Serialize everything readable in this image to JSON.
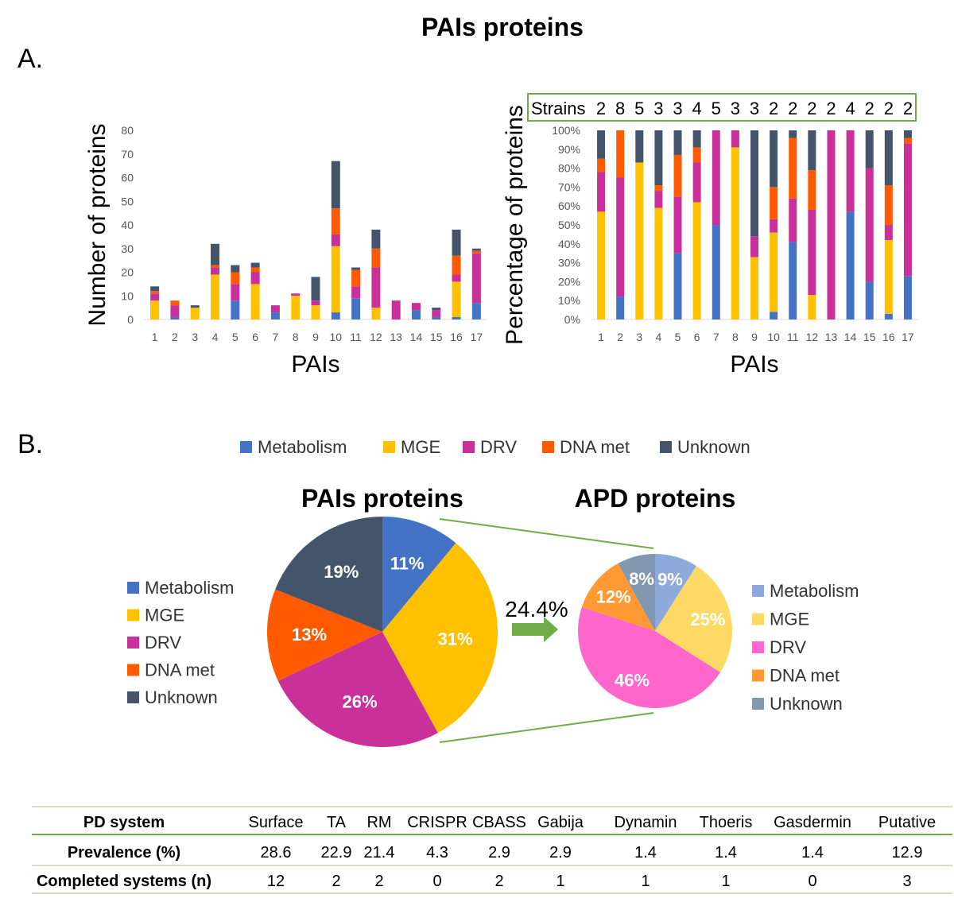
{
  "figure": {
    "title": "PAIs proteins",
    "panel_a_label": "A.",
    "panel_b_label": "B."
  },
  "colors": {
    "Metabolism": "#4472C4",
    "MGE": "#FFC000",
    "DRV": "#C9309A",
    "DNA met": "#FF5A00",
    "Unknown": "#44546A",
    "Metabolism_light": "#8EA9DB",
    "MGE_light": "#FFD966",
    "DRV_light": "#FF66CC",
    "DNA met_light": "#FF9933",
    "Unknown_light": "#8497B0",
    "green": "#70AD47"
  },
  "chart_data": [
    {
      "id": "counts",
      "type": "bar",
      "stacked": true,
      "categories": [
        "1",
        "2",
        "3",
        "4",
        "5",
        "6",
        "7",
        "8",
        "9",
        "10",
        "11",
        "12",
        "13",
        "14",
        "15",
        "16",
        "17"
      ],
      "series": [
        {
          "name": "Metabolism",
          "values": [
            0,
            1,
            0,
            0,
            8,
            0,
            3,
            0,
            0,
            3,
            9,
            0,
            0,
            4,
            1,
            1,
            7
          ]
        },
        {
          "name": "MGE",
          "values": [
            8,
            0,
            5,
            19,
            0,
            15,
            0,
            10,
            6,
            28,
            0,
            5,
            0,
            0,
            0,
            15,
            0
          ]
        },
        {
          "name": "DRV",
          "values": [
            3,
            5,
            0,
            3,
            7,
            5,
            3,
            1,
            2,
            5,
            5,
            17,
            8,
            3,
            3,
            3,
            21
          ]
        },
        {
          "name": "DNA met",
          "values": [
            1,
            2,
            0,
            1,
            5,
            2,
            0,
            0,
            0,
            11,
            7,
            8,
            0,
            0,
            0,
            8,
            1
          ]
        },
        {
          "name": "Unknown",
          "values": [
            2,
            0,
            1,
            9,
            3,
            2,
            0,
            0,
            10,
            20,
            1,
            8,
            0,
            0,
            1,
            11,
            1
          ]
        }
      ],
      "xlabel": "PAIs",
      "ylabel": "Number of proteins",
      "yticks": [
        "0",
        "10",
        "20",
        "30",
        "40",
        "50",
        "60",
        "70",
        "80"
      ],
      "ylim": [
        0,
        80
      ],
      "grid": false
    },
    {
      "id": "percent",
      "type": "bar",
      "stacked": true,
      "categories": [
        "1",
        "2",
        "3",
        "4",
        "5",
        "6",
        "7",
        "8",
        "9",
        "10",
        "11",
        "12",
        "13",
        "14",
        "15",
        "16",
        "17"
      ],
      "series": [
        {
          "name": "Metabolism",
          "values": [
            0,
            12,
            0,
            0,
            35,
            0,
            50,
            0,
            0,
            4,
            41,
            0,
            0,
            57,
            20,
            3,
            23
          ]
        },
        {
          "name": "MGE",
          "values": [
            57,
            0,
            83,
            59,
            0,
            62,
            0,
            91,
            33,
            42,
            0,
            13,
            0,
            0,
            0,
            39,
            0
          ]
        },
        {
          "name": "DRV",
          "values": [
            21,
            63,
            0,
            9,
            30,
            21,
            50,
            9,
            11,
            7,
            23,
            45,
            100,
            43,
            60,
            8,
            70
          ]
        },
        {
          "name": "DNA met",
          "values": [
            7,
            25,
            0,
            3,
            22,
            8,
            0,
            0,
            0,
            17,
            32,
            21,
            0,
            0,
            0,
            21,
            3
          ]
        },
        {
          "name": "Unknown",
          "values": [
            15,
            0,
            17,
            29,
            13,
            9,
            0,
            0,
            56,
            30,
            4,
            21,
            0,
            0,
            20,
            29,
            4
          ]
        }
      ],
      "strains_label": "Strains",
      "strains": [
        "2",
        "8",
        "5",
        "3",
        "3",
        "4",
        "5",
        "3",
        "3",
        "2",
        "2",
        "2",
        "2",
        "4",
        "2",
        "2",
        "2"
      ],
      "xlabel": "PAIs",
      "ylabel": "Percentage of proteins",
      "yticks": [
        "0%",
        "10%",
        "20%",
        "30%",
        "40%",
        "50%",
        "60%",
        "70%",
        "80%",
        "90%",
        "100%"
      ],
      "ylim": [
        0,
        100
      ],
      "grid": false
    },
    {
      "id": "pai_pie",
      "type": "pie",
      "title": "PAIs proteins",
      "labels": [
        "Metabolism",
        "MGE",
        "DRV",
        "DNA met",
        "Unknown"
      ],
      "values": [
        11,
        31,
        26,
        13,
        19
      ],
      "value_labels": [
        "11%",
        "31%",
        "26%",
        "13%",
        "19%"
      ]
    },
    {
      "id": "apd_pie",
      "type": "pie",
      "title": "APD proteins",
      "labels": [
        "Metabolism",
        "MGE",
        "DRV",
        "DNA met",
        "Unknown"
      ],
      "values": [
        9,
        25,
        46,
        12,
        8
      ],
      "value_labels": [
        "9%",
        "25%",
        "46%",
        "12%",
        "8%"
      ]
    },
    {
      "id": "pd_table",
      "type": "table",
      "columns": [
        "PD system",
        "Surface",
        "TA",
        "RM",
        "CRISPR",
        "CBASS",
        "Gabija",
        "Dynamin",
        "Thoeris",
        "Gasdermin",
        "Putative"
      ],
      "rows": [
        [
          "Prevalence (%)",
          "28.6",
          "22.9",
          "21.4",
          "4.3",
          "2.9",
          "2.9",
          "1.4",
          "1.4",
          "1.4",
          "12.9"
        ],
        [
          "Completed systems (n)",
          "12",
          "2",
          "2",
          "0",
          "2",
          "1",
          "1",
          "1",
          "0",
          "3"
        ]
      ]
    }
  ],
  "legend_top": [
    "Metabolism",
    "MGE",
    "DRV",
    "DNA met",
    "Unknown"
  ],
  "legend_pai": [
    "Metabolism",
    "MGE",
    "DRV",
    "DNA met",
    "Unknown"
  ],
  "legend_apd": [
    "Metabolism",
    "MGE",
    "DRV",
    "DNA met",
    "Unknown"
  ],
  "arrow_label": "24.4%"
}
